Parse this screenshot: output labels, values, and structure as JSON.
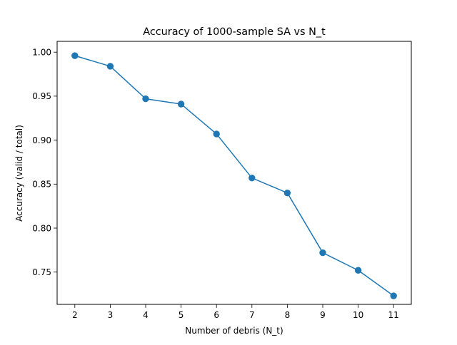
{
  "chart_data": {
    "type": "line",
    "title": "Accuracy of 1000-sample SA vs N_t",
    "xlabel": "Number of debris (N_t)",
    "ylabel": "Accuracy (valid / total)",
    "x": [
      2,
      3,
      4,
      5,
      6,
      7,
      8,
      9,
      10,
      11
    ],
    "series": [
      {
        "values": [
          0.996,
          0.984,
          0.947,
          0.941,
          0.907,
          0.857,
          0.84,
          0.772,
          0.752,
          0.723
        ],
        "color": "#1f77b4",
        "marker": "circle"
      }
    ],
    "xlim": [
      1.5,
      11.5
    ],
    "ylim": [
      0.7133,
      1.0123
    ],
    "xticks": [
      2,
      3,
      4,
      5,
      6,
      7,
      8,
      9,
      10,
      11
    ],
    "xtick_labels": [
      "2",
      "3",
      "4",
      "5",
      "6",
      "7",
      "8",
      "9",
      "10",
      "11"
    ],
    "yticks": [
      0.75,
      0.8,
      0.85,
      0.9,
      0.95,
      1.0
    ],
    "ytick_labels": [
      "0.75",
      "0.80",
      "0.85",
      "0.90",
      "0.95",
      "1.00"
    ],
    "grid": false,
    "legend": "none"
  }
}
